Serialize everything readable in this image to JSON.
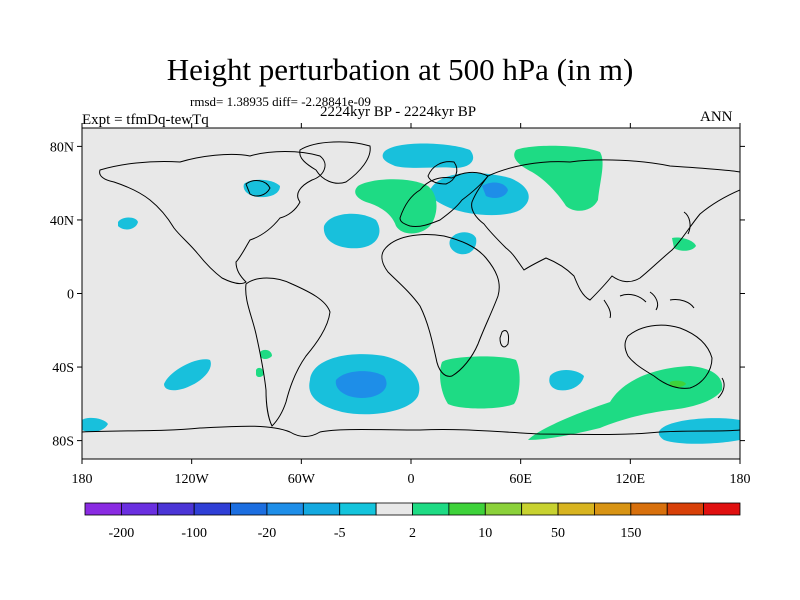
{
  "header": {
    "title": "Height perturbation at 500 hPa (in m)",
    "stats": "rmsd= 1.38935 diff= -2.28841e-09",
    "left_label": "Expt = tfmDq-tewTq",
    "center_label": "2224kyr BP - 2224kyr BP",
    "right_label": "ANN"
  },
  "map": {
    "projection": "cylindrical equidistant",
    "lon_range": [
      -180,
      180
    ],
    "lat_range": [
      -90,
      90
    ],
    "background": "#e8e8e8",
    "lat_ticks": [
      {
        "lat": 80,
        "label": "80N"
      },
      {
        "lat": 40,
        "label": "40N"
      },
      {
        "lat": 0,
        "label": "0"
      },
      {
        "lat": -40,
        "label": "40S"
      },
      {
        "lat": -80,
        "label": "80S"
      }
    ],
    "lon_ticks": [
      {
        "lon": -180,
        "label": "180"
      },
      {
        "lon": -120,
        "label": "120W"
      },
      {
        "lon": -60,
        "label": "60W"
      },
      {
        "lon": 0,
        "label": "0"
      },
      {
        "lon": 60,
        "label": "60E"
      },
      {
        "lon": 120,
        "label": "120E"
      },
      {
        "lon": 180,
        "label": "180"
      }
    ]
  },
  "colorbar": {
    "colors": [
      "#8a2be2",
      "#6a2fe0",
      "#4b35d6",
      "#2f3fd6",
      "#1c6ee0",
      "#1e8ee8",
      "#14a9e0",
      "#14c4dc",
      "#e8e8e8",
      "#1edb84",
      "#3ed23a",
      "#8bd13a",
      "#c8d230",
      "#d8b420",
      "#d89414",
      "#d8700c",
      "#d84008",
      "#e01010"
    ],
    "labels": [
      {
        "boundary": 1,
        "text": "-200"
      },
      {
        "boundary": 3,
        "text": "-100"
      },
      {
        "boundary": 5,
        "text": "-20"
      },
      {
        "boundary": 7,
        "text": "-5"
      },
      {
        "boundary": 9,
        "text": "2"
      },
      {
        "boundary": 11,
        "text": "10"
      },
      {
        "boundary": 13,
        "text": "50"
      },
      {
        "boundary": 15,
        "text": "150"
      }
    ]
  },
  "fields": {
    "cyan": "#18c0dc",
    "blue": "#1e8ee8",
    "green": "#1edb84",
    "lightgreen": "#3ed23a"
  }
}
